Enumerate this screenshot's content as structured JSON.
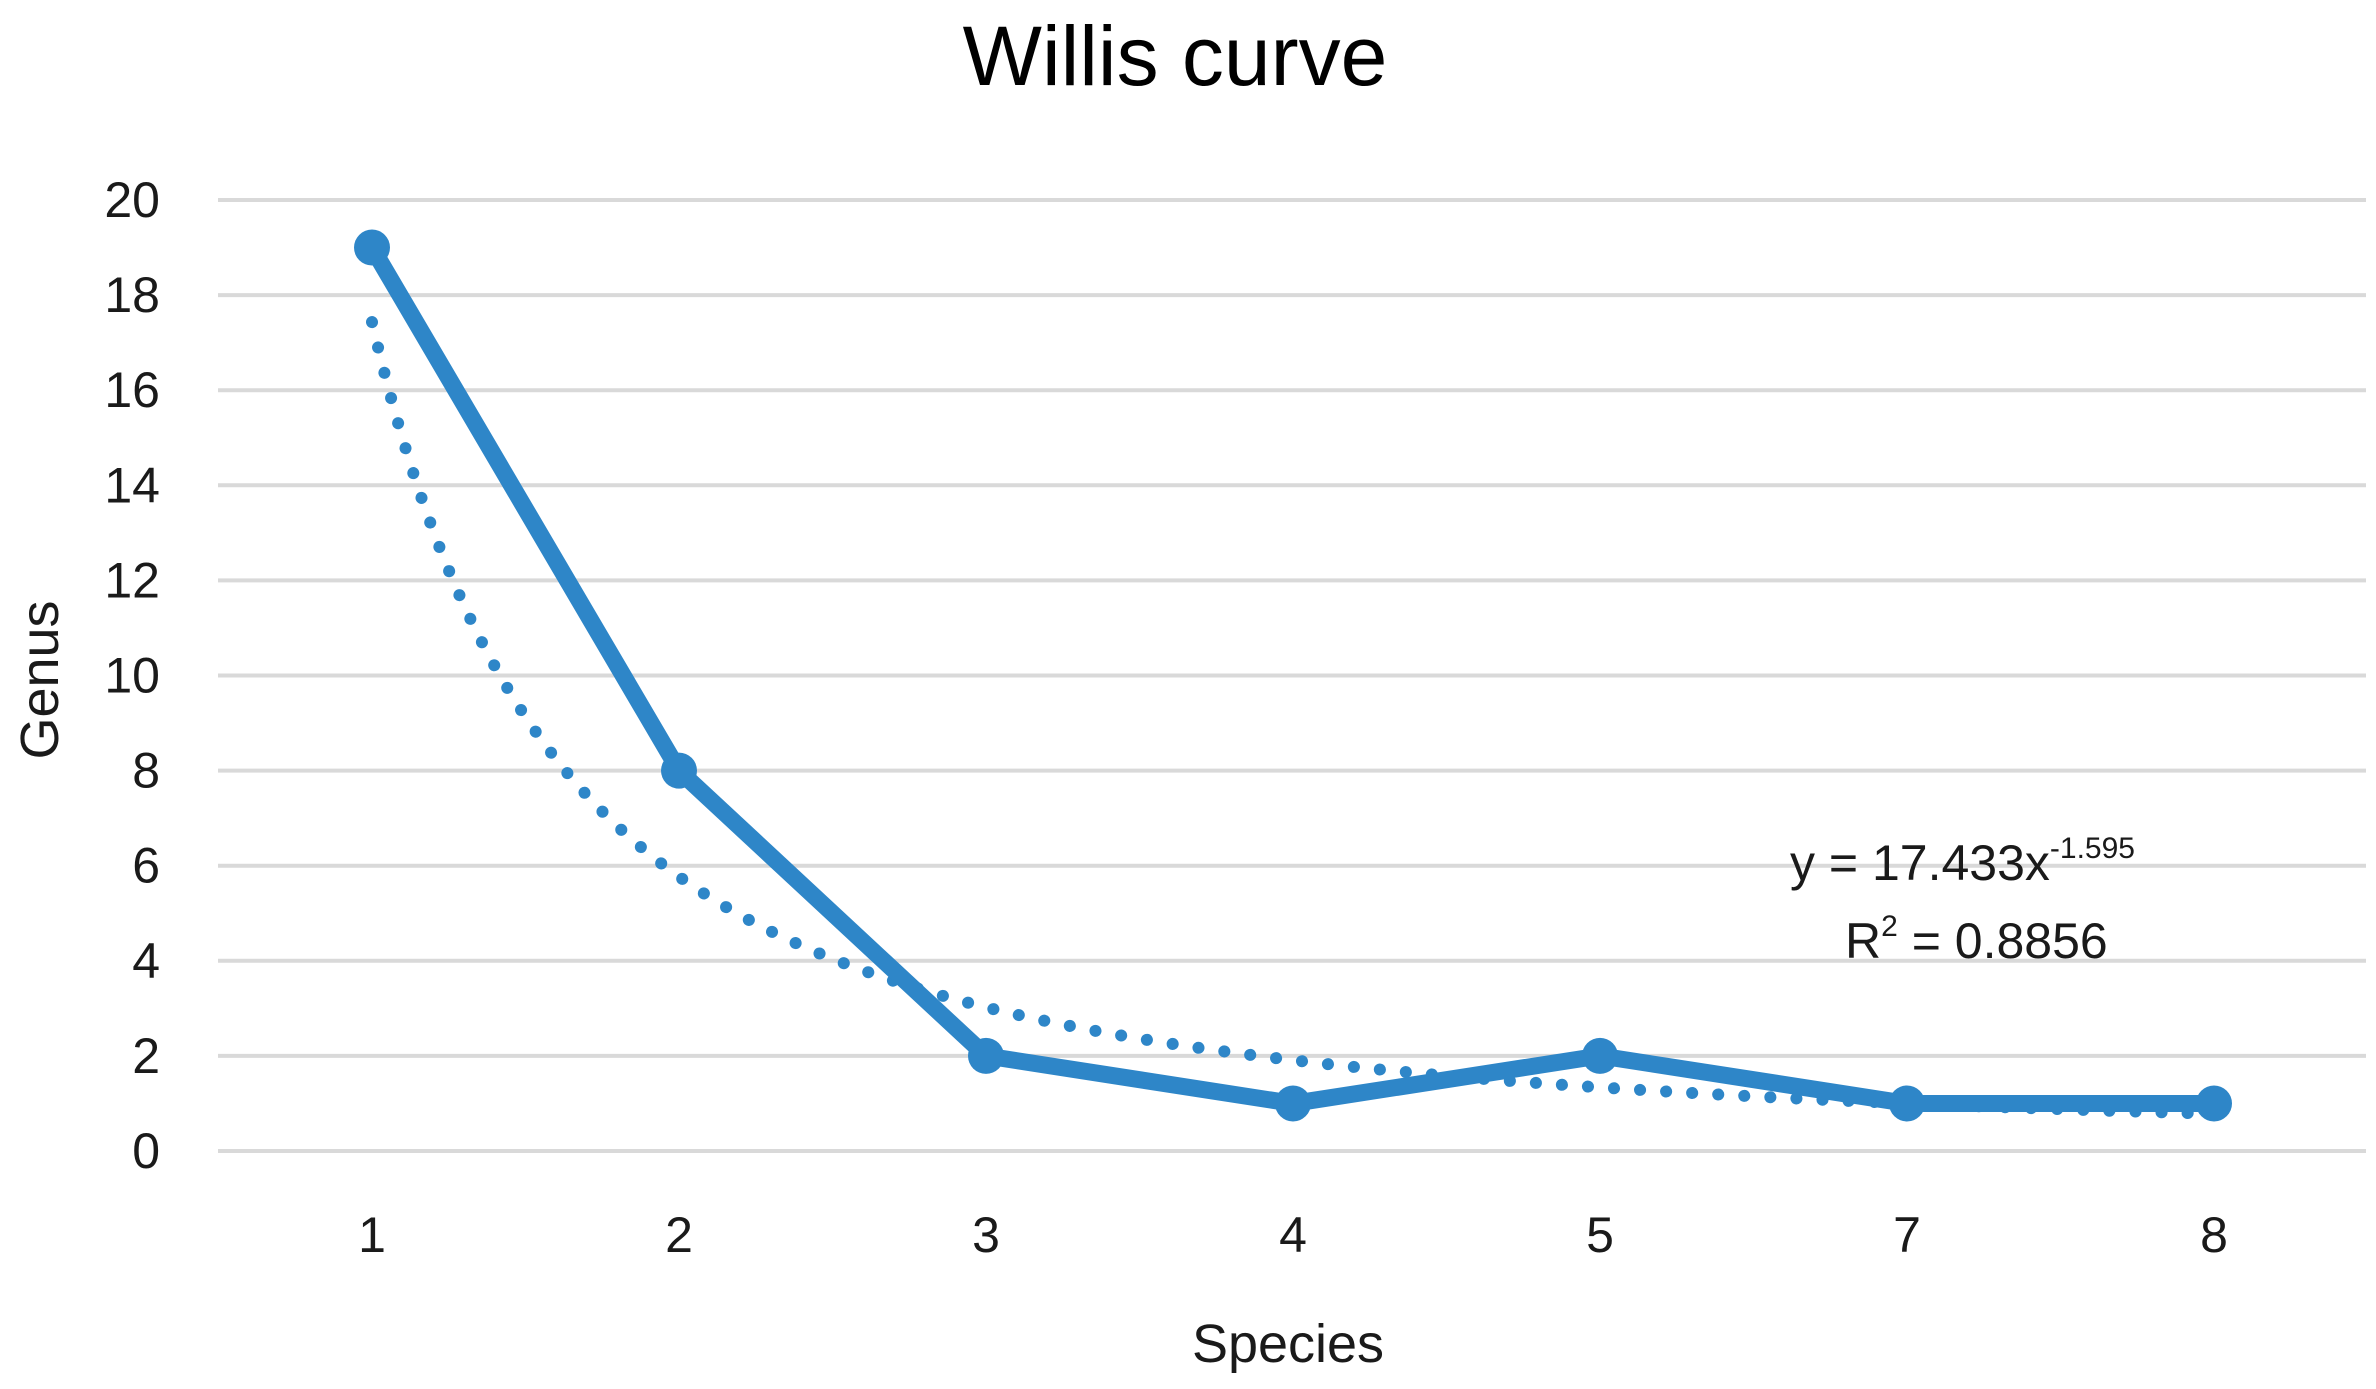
{
  "chart_data": {
    "type": "line",
    "title": "Willis curve",
    "xlabel": "Species",
    "ylabel": "Genus",
    "categories": [
      "1",
      "2",
      "3",
      "4",
      "5",
      "7",
      "8"
    ],
    "series": [
      {
        "values": [
          19,
          8,
          2,
          1,
          2,
          1,
          1
        ],
        "color": "#2E86C8",
        "style": "solid",
        "markers": true
      }
    ],
    "trendline": {
      "type": "power",
      "a": 17.433,
      "b": -1.595,
      "style": "dotted",
      "color": "#2E86C8",
      "equation_main": "y = 17.433x",
      "equation_exponent": "-1.595",
      "r2_main": "R",
      "r2_exponent": "2",
      "r2_value": " = 0.8856"
    },
    "ylim": [
      0,
      20
    ],
    "yticks": [
      "0",
      "2",
      "4",
      "6",
      "8",
      "10",
      "12",
      "14",
      "16",
      "18",
      "20"
    ],
    "grid": true,
    "legend": "none"
  }
}
